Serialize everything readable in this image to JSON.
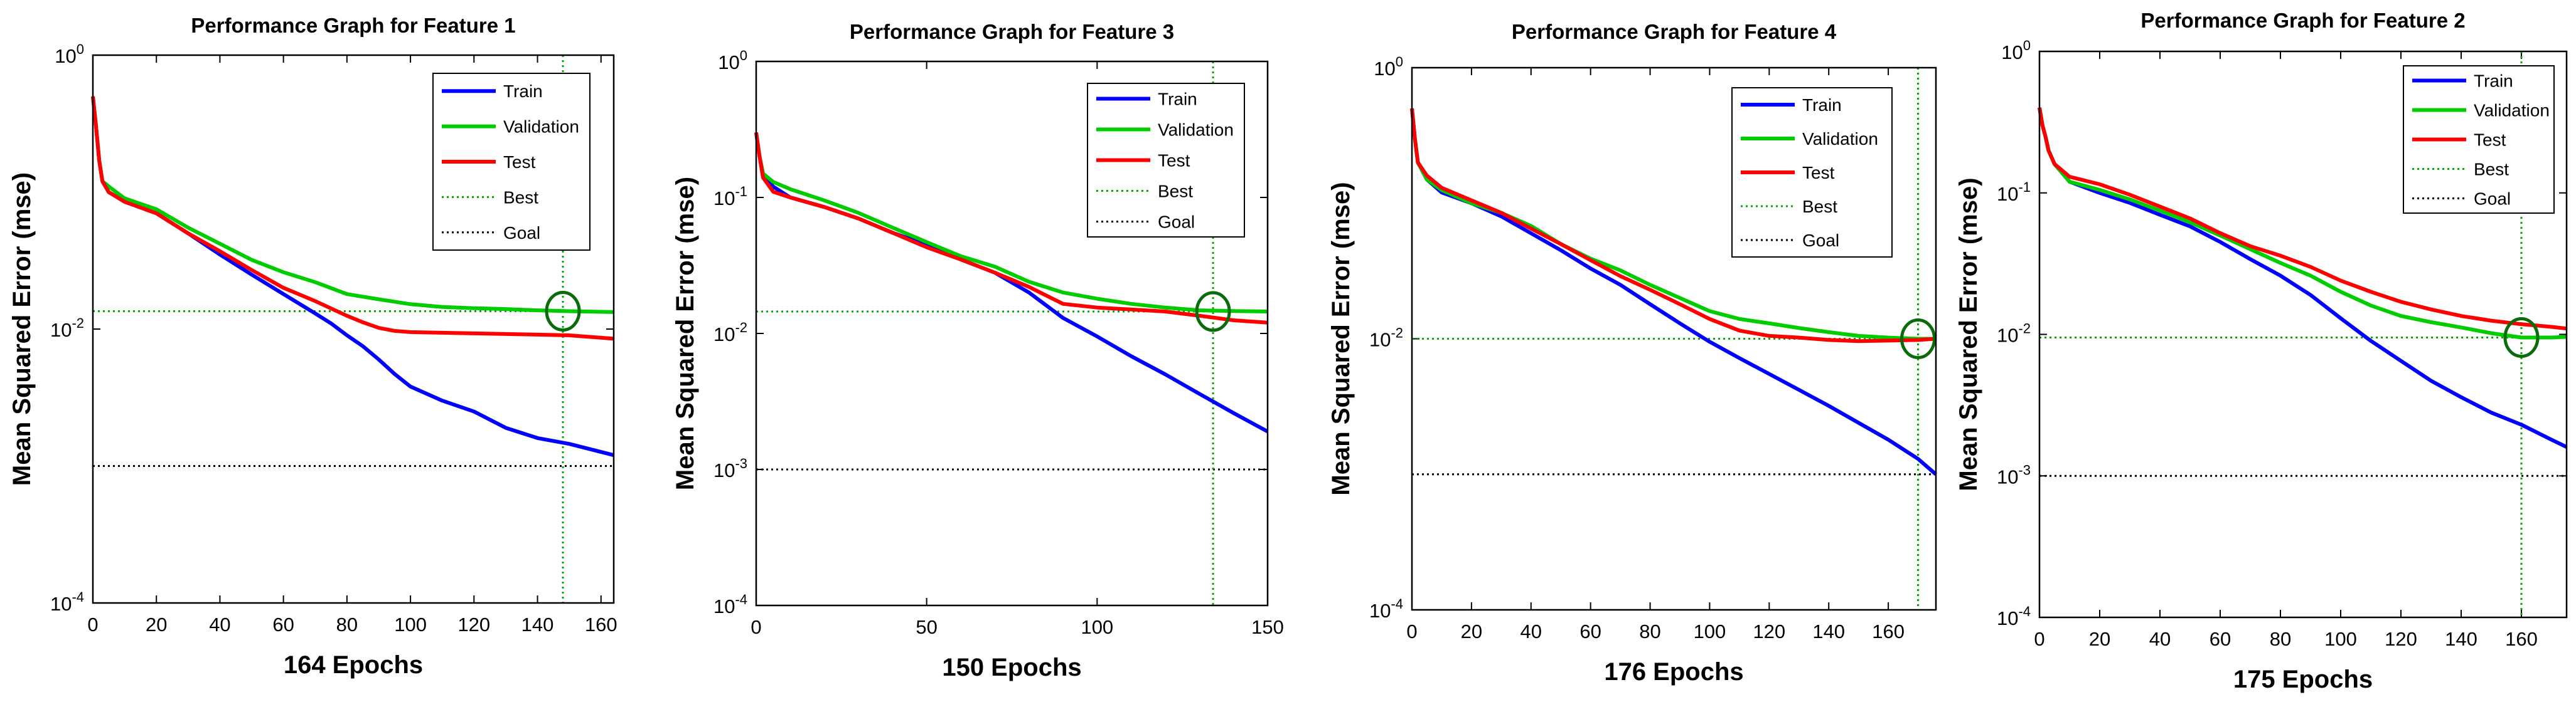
{
  "chart_data": [
    {
      "type": "line",
      "title": "Performance Graph for Feature 1",
      "xlabel": "164 Epochs",
      "ylabel": "Mean Squared Error  (mse)",
      "yscale": "log",
      "xlim": [
        0,
        164
      ],
      "ylim": [
        0.0001,
        1
      ],
      "xticks": [
        0,
        20,
        40,
        60,
        80,
        100,
        120,
        140,
        160
      ],
      "xtick_labels": [
        "0",
        "20",
        "40",
        "60",
        "80",
        "100",
        "120",
        "140",
        "160"
      ],
      "yticks": [
        0.0001,
        0.01,
        1
      ],
      "ytick_labels": [
        {
          "base": "10",
          "exp": "-4"
        },
        {
          "base": "10",
          "exp": "-2"
        },
        {
          "base": "10",
          "exp": "0"
        }
      ],
      "legend": [
        "Train",
        "Validation",
        "Test",
        "Best",
        "Goal"
      ],
      "legend_position": "top-right",
      "best_epoch": 148,
      "best_value": 0.0135,
      "goal": 0.001,
      "series": [
        {
          "name": "Train",
          "color": "#0000ff",
          "x": [
            0,
            1,
            2,
            3,
            5,
            10,
            20,
            30,
            40,
            50,
            60,
            70,
            75,
            80,
            85,
            90,
            95,
            100,
            110,
            120,
            130,
            140,
            150,
            164
          ],
          "y": [
            0.5,
            0.3,
            0.17,
            0.12,
            0.1,
            0.085,
            0.07,
            0.05,
            0.035,
            0.025,
            0.018,
            0.013,
            0.011,
            0.009,
            0.0075,
            0.006,
            0.0047,
            0.0038,
            0.003,
            0.0025,
            0.0019,
            0.0016,
            0.00145,
            0.0012
          ]
        },
        {
          "name": "Validation",
          "color": "#00cc00",
          "x": [
            0,
            1,
            2,
            3,
            5,
            10,
            20,
            30,
            40,
            50,
            60,
            70,
            80,
            90,
            100,
            110,
            120,
            130,
            140,
            150,
            164
          ],
          "y": [
            0.5,
            0.3,
            0.17,
            0.12,
            0.11,
            0.09,
            0.075,
            0.055,
            0.042,
            0.032,
            0.026,
            0.022,
            0.018,
            0.0165,
            0.0152,
            0.0145,
            0.0142,
            0.014,
            0.0137,
            0.0135,
            0.0133
          ]
        },
        {
          "name": "Test",
          "color": "#ff0000",
          "x": [
            0,
            1,
            2,
            3,
            5,
            10,
            20,
            30,
            40,
            50,
            60,
            70,
            80,
            85,
            90,
            95,
            100,
            120,
            140,
            150,
            164
          ],
          "y": [
            0.5,
            0.3,
            0.17,
            0.12,
            0.1,
            0.085,
            0.07,
            0.05,
            0.037,
            0.027,
            0.02,
            0.016,
            0.0125,
            0.0112,
            0.0102,
            0.0097,
            0.0095,
            0.0093,
            0.0091,
            0.009,
            0.0085
          ]
        }
      ]
    },
    {
      "type": "line",
      "title": "Performance Graph for Feature 3",
      "xlabel": "150 Epochs",
      "ylabel": "Mean Squared Error  (mse)",
      "yscale": "log",
      "xlim": [
        0,
        150
      ],
      "ylim": [
        0.0001,
        1
      ],
      "xticks": [
        0,
        50,
        100,
        150
      ],
      "xtick_labels": [
        "0",
        "50",
        "100",
        "150"
      ],
      "yticks": [
        0.0001,
        0.001,
        0.01,
        0.1,
        1
      ],
      "ytick_labels": [
        {
          "base": "10",
          "exp": "-4"
        },
        {
          "base": "10",
          "exp": "-3"
        },
        {
          "base": "10",
          "exp": "-2"
        },
        {
          "base": "10",
          "exp": "-1"
        },
        {
          "base": "10",
          "exp": "0"
        }
      ],
      "legend": [
        "Train",
        "Validation",
        "Test",
        "Best",
        "Goal"
      ],
      "legend_position": "top-right",
      "best_epoch": 134,
      "best_value": 0.0145,
      "goal": 0.001,
      "series": [
        {
          "name": "Train",
          "color": "#0000ff",
          "x": [
            0,
            1,
            2,
            5,
            10,
            20,
            30,
            40,
            50,
            60,
            70,
            80,
            90,
            100,
            110,
            120,
            130,
            140,
            150
          ],
          "y": [
            0.3,
            0.2,
            0.15,
            0.12,
            0.1,
            0.085,
            0.07,
            0.055,
            0.045,
            0.035,
            0.028,
            0.02,
            0.013,
            0.0095,
            0.0068,
            0.005,
            0.0036,
            0.0026,
            0.0019
          ]
        },
        {
          "name": "Validation",
          "color": "#00cc00",
          "x": [
            0,
            1,
            2,
            5,
            10,
            20,
            30,
            40,
            50,
            60,
            70,
            80,
            90,
            100,
            110,
            120,
            130,
            140,
            150
          ],
          "y": [
            0.3,
            0.2,
            0.15,
            0.13,
            0.115,
            0.095,
            0.077,
            0.06,
            0.047,
            0.037,
            0.031,
            0.024,
            0.02,
            0.018,
            0.0165,
            0.0155,
            0.0148,
            0.0146,
            0.0145
          ]
        },
        {
          "name": "Test",
          "color": "#ff0000",
          "x": [
            0,
            1,
            2,
            5,
            10,
            20,
            30,
            40,
            50,
            60,
            70,
            80,
            90,
            100,
            110,
            120,
            130,
            140,
            150
          ],
          "y": [
            0.3,
            0.2,
            0.14,
            0.11,
            0.1,
            0.085,
            0.07,
            0.055,
            0.043,
            0.035,
            0.028,
            0.022,
            0.0165,
            0.0155,
            0.015,
            0.0145,
            0.0135,
            0.0125,
            0.012
          ]
        }
      ]
    },
    {
      "type": "line",
      "title": "Performance Graph for Feature 4",
      "xlabel": "176 Epochs",
      "ylabel": "Mean Squared Error  (mse)",
      "yscale": "log",
      "xlim": [
        0,
        176
      ],
      "ylim": [
        0.0001,
        1
      ],
      "xticks": [
        0,
        20,
        40,
        60,
        80,
        100,
        120,
        140,
        160
      ],
      "xtick_labels": [
        "0",
        "20",
        "40",
        "60",
        "80",
        "100",
        "120",
        "140",
        "160"
      ],
      "yticks": [
        0.0001,
        0.01,
        1
      ],
      "ytick_labels": [
        {
          "base": "10",
          "exp": "-4"
        },
        {
          "base": "10",
          "exp": "-2"
        },
        {
          "base": "10",
          "exp": "0"
        }
      ],
      "legend": [
        "Train",
        "Validation",
        "Test",
        "Best",
        "Goal"
      ],
      "legend_position": "top-right",
      "best_epoch": 170,
      "best_value": 0.01,
      "goal": 0.001,
      "series": [
        {
          "name": "Train",
          "color": "#0000ff",
          "x": [
            0,
            1,
            2,
            5,
            10,
            20,
            30,
            40,
            50,
            60,
            70,
            80,
            90,
            100,
            110,
            120,
            130,
            140,
            150,
            160,
            170,
            176
          ],
          "y": [
            0.5,
            0.3,
            0.2,
            0.15,
            0.12,
            0.1,
            0.08,
            0.06,
            0.045,
            0.033,
            0.025,
            0.018,
            0.013,
            0.0095,
            0.0072,
            0.0055,
            0.0042,
            0.0032,
            0.0024,
            0.0018,
            0.0013,
            0.001
          ]
        },
        {
          "name": "Validation",
          "color": "#00cc00",
          "x": [
            0,
            1,
            2,
            5,
            10,
            20,
            30,
            40,
            50,
            60,
            70,
            80,
            90,
            100,
            110,
            120,
            130,
            140,
            150,
            160,
            170,
            176
          ],
          "y": [
            0.5,
            0.3,
            0.2,
            0.15,
            0.125,
            0.1,
            0.085,
            0.068,
            0.05,
            0.039,
            0.032,
            0.025,
            0.02,
            0.016,
            0.014,
            0.013,
            0.012,
            0.0112,
            0.0105,
            0.0102,
            0.01,
            0.01
          ]
        },
        {
          "name": "Test",
          "color": "#ff0000",
          "x": [
            0,
            1,
            2,
            5,
            10,
            20,
            30,
            40,
            50,
            60,
            70,
            80,
            90,
            100,
            110,
            120,
            130,
            140,
            150,
            160,
            170,
            176
          ],
          "y": [
            0.5,
            0.3,
            0.2,
            0.16,
            0.13,
            0.105,
            0.085,
            0.065,
            0.05,
            0.038,
            0.029,
            0.023,
            0.018,
            0.014,
            0.0115,
            0.0105,
            0.0102,
            0.0098,
            0.0096,
            0.0097,
            0.0098,
            0.01
          ]
        }
      ]
    },
    {
      "type": "line",
      "title": "Performance Graph for Feature 2",
      "xlabel": "175 Epochs",
      "ylabel": "Mean Squared Error  (mse)",
      "yscale": "log",
      "xlim": [
        0,
        175
      ],
      "ylim": [
        0.0001,
        1
      ],
      "xticks": [
        0,
        20,
        40,
        60,
        80,
        100,
        120,
        140,
        160
      ],
      "xtick_labels": [
        "0",
        "20",
        "40",
        "60",
        "80",
        "100",
        "120",
        "140",
        "160"
      ],
      "yticks": [
        0.0001,
        0.001,
        0.01,
        0.1,
        1
      ],
      "ytick_labels": [
        {
          "base": "10",
          "exp": "-4"
        },
        {
          "base": "10",
          "exp": "-3"
        },
        {
          "base": "10",
          "exp": "-2"
        },
        {
          "base": "10",
          "exp": "-1"
        },
        {
          "base": "10",
          "exp": "0"
        }
      ],
      "legend": [
        "Train",
        "Validation",
        "Test",
        "Best",
        "Goal"
      ],
      "legend_position": "top-right",
      "best_epoch": 160,
      "best_value": 0.0095,
      "goal": 0.001,
      "series": [
        {
          "name": "Train",
          "color": "#0000ff",
          "x": [
            0,
            1,
            2,
            3,
            5,
            10,
            20,
            30,
            40,
            50,
            60,
            70,
            80,
            90,
            100,
            110,
            120,
            130,
            140,
            150,
            160,
            170,
            175
          ],
          "y": [
            0.4,
            0.3,
            0.25,
            0.2,
            0.16,
            0.12,
            0.1,
            0.085,
            0.07,
            0.058,
            0.045,
            0.034,
            0.026,
            0.019,
            0.013,
            0.009,
            0.0065,
            0.0047,
            0.0036,
            0.0028,
            0.0023,
            0.0018,
            0.0016
          ]
        },
        {
          "name": "Validation",
          "color": "#00cc00",
          "x": [
            0,
            1,
            2,
            3,
            5,
            10,
            20,
            30,
            40,
            50,
            60,
            70,
            80,
            90,
            100,
            110,
            120,
            130,
            140,
            150,
            160,
            170,
            175
          ],
          "y": [
            0.4,
            0.3,
            0.25,
            0.2,
            0.16,
            0.12,
            0.105,
            0.09,
            0.075,
            0.062,
            0.05,
            0.04,
            0.032,
            0.026,
            0.02,
            0.016,
            0.0135,
            0.0122,
            0.0112,
            0.0102,
            0.0095,
            0.0095,
            0.0096
          ]
        },
        {
          "name": "Test",
          "color": "#ff0000",
          "x": [
            0,
            1,
            2,
            3,
            5,
            10,
            20,
            30,
            40,
            50,
            60,
            70,
            80,
            90,
            100,
            110,
            120,
            130,
            140,
            150,
            160,
            170,
            175
          ],
          "y": [
            0.4,
            0.3,
            0.25,
            0.2,
            0.16,
            0.13,
            0.115,
            0.097,
            0.08,
            0.066,
            0.052,
            0.042,
            0.036,
            0.03,
            0.024,
            0.02,
            0.017,
            0.015,
            0.0135,
            0.0125,
            0.0118,
            0.0113,
            0.011
          ]
        }
      ]
    }
  ]
}
